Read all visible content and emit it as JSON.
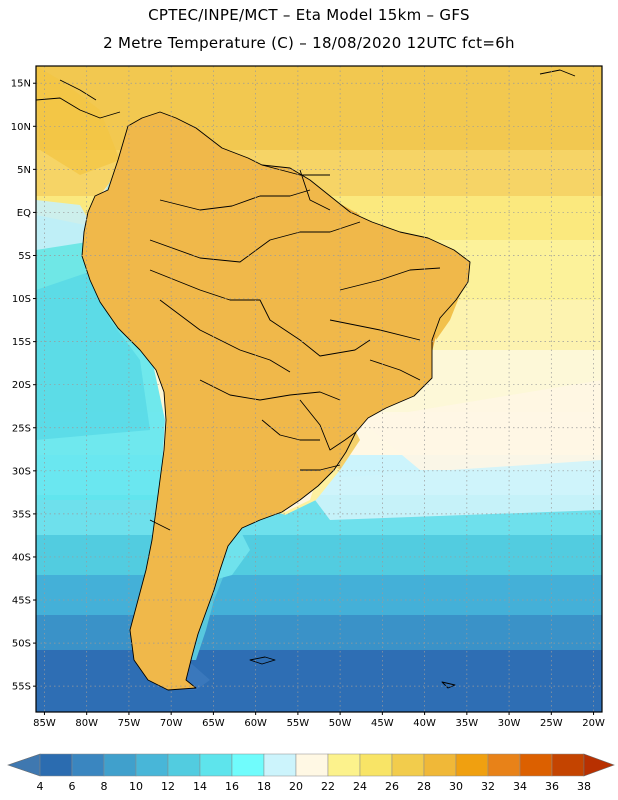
{
  "title": {
    "line1": "CPTEC/INPE/MCT –  Eta Model 15km – GFS",
    "line2": "2 Metre Temperature (C) – 18/08/2020 12UTC fct=6h"
  },
  "map": {
    "lon_range": [
      -86,
      -19
    ],
    "lat_range": [
      -58,
      17
    ],
    "lat_labels": [
      "15N",
      "10N",
      "5N",
      "EQ",
      "5S",
      "10S",
      "15S",
      "20S",
      "25S",
      "30S",
      "35S",
      "40S",
      "45S",
      "50S",
      "55S"
    ],
    "lat_values": [
      15,
      10,
      5,
      0,
      -5,
      -10,
      -15,
      -20,
      -25,
      -30,
      -35,
      -40,
      -45,
      -50,
      -55
    ],
    "lon_labels": [
      "85W",
      "80W",
      "75W",
      "70W",
      "65W",
      "60W",
      "55W",
      "50W",
      "45W",
      "40W",
      "35W",
      "30W",
      "25W",
      "20W"
    ],
    "lon_values": [
      -85,
      -80,
      -75,
      -70,
      -65,
      -60,
      -55,
      -50,
      -45,
      -40,
      -35,
      -30,
      -25,
      -20
    ]
  },
  "colorbar": {
    "labels": [
      "4",
      "6",
      "8",
      "10",
      "12",
      "14",
      "16",
      "18",
      "20",
      "22",
      "24",
      "26",
      "28",
      "30",
      "32",
      "34",
      "36",
      "38"
    ],
    "colors": [
      "#3f78b0",
      "#2b6cb0",
      "#3a86c0",
      "#40a0cc",
      "#48b6d8",
      "#52cce0",
      "#5ee4ec",
      "#70fcfc",
      "#ccf4fc",
      "#fff8e4",
      "#fcf28c",
      "#f8e466",
      "#f2cc4c",
      "#f0b838",
      "#f0a010",
      "#e88218",
      "#dc6000",
      "#c44400",
      "#b83000"
    ],
    "units": "C"
  }
}
